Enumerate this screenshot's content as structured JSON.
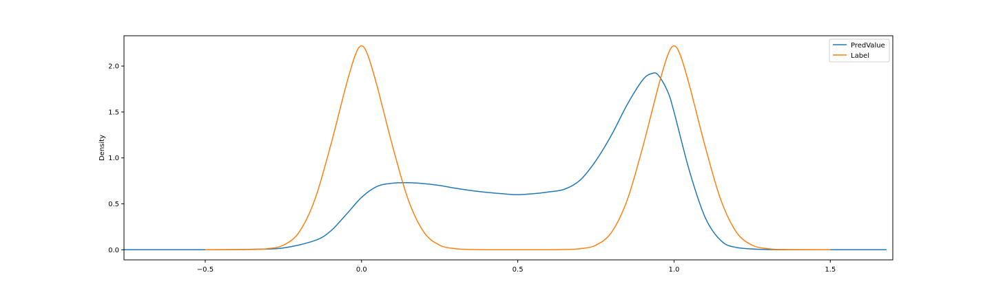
{
  "chart_data": {
    "type": "line",
    "title": "",
    "xlabel": "",
    "ylabel": "Density",
    "xlim": [
      -0.76,
      1.7
    ],
    "ylim": [
      -0.11,
      2.33
    ],
    "x_ticks": [
      -0.5,
      0.0,
      0.5,
      1.0,
      1.5
    ],
    "x_tick_labels": [
      "−0.5",
      "0.0",
      "0.5",
      "1.0",
      "1.5"
    ],
    "y_ticks": [
      0.0,
      0.5,
      1.0,
      1.5,
      2.0
    ],
    "y_tick_labels": [
      "0.0",
      "0.5",
      "1.0",
      "1.5",
      "2.0"
    ],
    "grid": false,
    "legend_position": "top-right",
    "series": [
      {
        "name": "PredValue",
        "color": "#1f77b4",
        "x": [
          -0.76,
          -0.5,
          -0.35,
          -0.25,
          -0.15,
          -0.1,
          -0.05,
          0.0,
          0.05,
          0.1,
          0.15,
          0.2,
          0.25,
          0.3,
          0.35,
          0.4,
          0.45,
          0.5,
          0.55,
          0.6,
          0.65,
          0.7,
          0.75,
          0.8,
          0.85,
          0.9,
          0.93,
          0.95,
          0.98,
          1.0,
          1.05,
          1.1,
          1.15,
          1.2,
          1.3,
          1.4,
          1.5,
          1.68
        ],
        "y": [
          0.0,
          0.0,
          0.005,
          0.02,
          0.1,
          0.2,
          0.38,
          0.57,
          0.69,
          0.725,
          0.73,
          0.72,
          0.7,
          0.67,
          0.645,
          0.625,
          0.61,
          0.6,
          0.61,
          0.63,
          0.66,
          0.76,
          0.97,
          1.25,
          1.58,
          1.85,
          1.92,
          1.9,
          1.72,
          1.5,
          0.85,
          0.35,
          0.1,
          0.025,
          0.002,
          0.0,
          0.0,
          0.0
        ]
      },
      {
        "name": "Label",
        "color": "#ff7f0e",
        "x": [
          -0.5,
          -0.35,
          -0.3,
          -0.25,
          -0.2,
          -0.15,
          -0.1,
          -0.05,
          -0.02,
          0.0,
          0.02,
          0.05,
          0.1,
          0.15,
          0.2,
          0.25,
          0.3,
          0.35,
          0.4,
          0.5,
          0.6,
          0.65,
          0.7,
          0.75,
          0.8,
          0.85,
          0.9,
          0.95,
          0.98,
          1.0,
          1.02,
          1.05,
          1.1,
          1.15,
          1.2,
          1.25,
          1.3,
          1.35,
          1.5
        ],
        "y": [
          0.0,
          0.003,
          0.012,
          0.05,
          0.19,
          0.54,
          1.12,
          1.78,
          2.12,
          2.22,
          2.12,
          1.78,
          1.12,
          0.54,
          0.19,
          0.05,
          0.012,
          0.003,
          0.0,
          0.0,
          0.0,
          0.003,
          0.012,
          0.05,
          0.19,
          0.54,
          1.12,
          1.78,
          2.12,
          2.22,
          2.12,
          1.78,
          1.12,
          0.54,
          0.19,
          0.05,
          0.012,
          0.003,
          0.0
        ]
      }
    ]
  }
}
